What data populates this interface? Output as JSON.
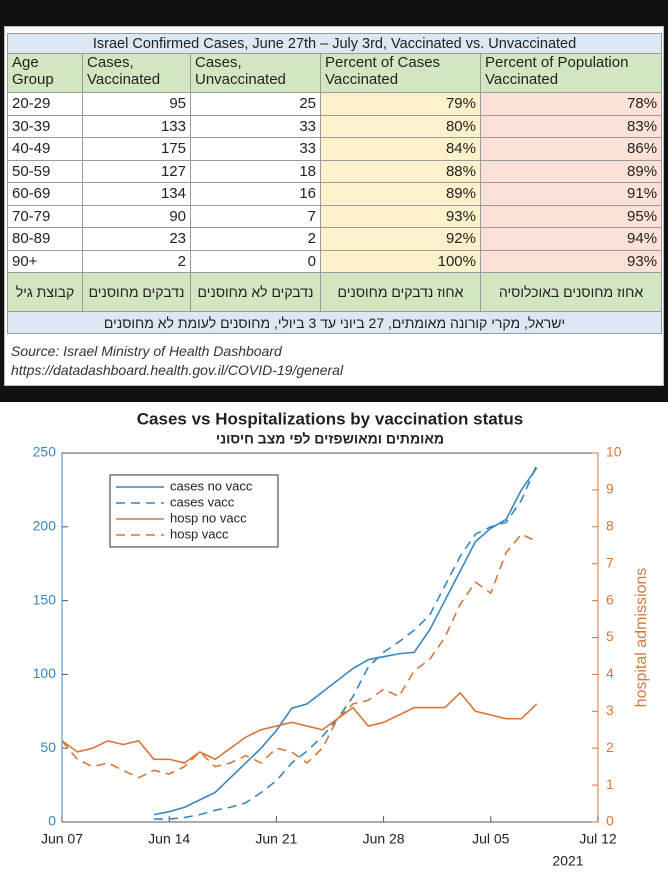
{
  "table": {
    "title": "Israel Confirmed Cases, June 27th – July 3rd, Vaccinated vs. Unvaccinated",
    "header": [
      "Age Group",
      "Cases, Vaccinated",
      "Cases, Unvaccinated",
      "Percent of Cases Vaccinated",
      "Percent of Population Vaccinated"
    ],
    "rows": [
      [
        "20-29",
        "95",
        "25",
        "79%",
        "78%"
      ],
      [
        "30-39",
        "133",
        "33",
        "80%",
        "83%"
      ],
      [
        "40-49",
        "175",
        "33",
        "84%",
        "86%"
      ],
      [
        "50-59",
        "127",
        "18",
        "88%",
        "89%"
      ],
      [
        "60-69",
        "134",
        "16",
        "89%",
        "91%"
      ],
      [
        "70-79",
        "90",
        "7",
        "93%",
        "95%"
      ],
      [
        "80-89",
        "23",
        "2",
        "92%",
        "94%"
      ],
      [
        "90+",
        "2",
        "0",
        "100%",
        "93%"
      ]
    ],
    "hebrew_header": [
      "קבוצת גיל",
      "נדבקים מחוסנים",
      "נדבקים לא מחוסנים",
      "אחוז נדבקים מחוסנים",
      "אחוז מחוסנים באוכלוסיה"
    ],
    "hebrew_title": "ישראל, מקרי קורונה מאומתים, 27 ביוני עד 3 ביולי, מחוסנים לעומת לא מחוסנים",
    "source": [
      "Source: Israel Ministry of Health Dashboard",
      "https://datadashboard.health.gov.il/COVID-19/general"
    ]
  },
  "chart_data": {
    "type": "line",
    "title": "Cases vs Hospitalizations by vaccination status",
    "subtitle": "מאומתים ומאושפזים לפי מצב חיסוני",
    "y2label": "hospital admissions",
    "x_offset_label": "2021",
    "x": [
      "2021-06-07",
      "2021-06-08",
      "2021-06-09",
      "2021-06-10",
      "2021-06-11",
      "2021-06-12",
      "2021-06-13",
      "2021-06-14",
      "2021-06-15",
      "2021-06-16",
      "2021-06-17",
      "2021-06-18",
      "2021-06-19",
      "2021-06-20",
      "2021-06-21",
      "2021-06-22",
      "2021-06-23",
      "2021-06-24",
      "2021-06-25",
      "2021-06-26",
      "2021-06-27",
      "2021-06-28",
      "2021-06-29",
      "2021-06-30",
      "2021-07-01",
      "2021-07-02",
      "2021-07-03",
      "2021-07-04",
      "2021-07-05",
      "2021-07-06",
      "2021-07-07",
      "2021-07-08"
    ],
    "xlim": [
      "2021-06-07",
      "2021-07-12"
    ],
    "xticks": [
      {
        "value": "2021-06-07",
        "label": "Jun 07"
      },
      {
        "value": "2021-06-14",
        "label": "Jun 14"
      },
      {
        "value": "2021-06-21",
        "label": "Jun 21"
      },
      {
        "value": "2021-06-28",
        "label": "Jun 28"
      },
      {
        "value": "2021-07-05",
        "label": "Jul 05"
      },
      {
        "value": "2021-07-12",
        "label": "Jul 12"
      }
    ],
    "ylim": [
      0,
      250
    ],
    "yticks": [
      0,
      50,
      100,
      150,
      200,
      250
    ],
    "y2lim": [
      0,
      10
    ],
    "y2ticks": [
      0,
      1,
      2,
      3,
      4,
      5,
      6,
      7,
      8,
      9,
      10
    ],
    "y_color": "#3a86c0",
    "y2_color": "#d9773a",
    "legend": "upper left",
    "series": [
      {
        "name": "cases no vacc",
        "color": "#3a86c0",
        "style": "solid",
        "axis": "y",
        "values": [
          null,
          null,
          null,
          null,
          null,
          null,
          5,
          7,
          10,
          15,
          20,
          30,
          40,
          50,
          62,
          77,
          80,
          88,
          96,
          104,
          110,
          112,
          114,
          115,
          130,
          150,
          170,
          190,
          199,
          205,
          225,
          240
        ]
      },
      {
        "name": "cases vacc",
        "color": "#3a86c0",
        "style": "dashed",
        "axis": "y",
        "values": [
          null,
          null,
          null,
          null,
          null,
          null,
          2,
          2,
          3,
          5,
          8,
          10,
          13,
          20,
          28,
          40,
          48,
          58,
          70,
          85,
          105,
          115,
          122,
          130,
          140,
          160,
          180,
          195,
          200,
          203,
          218,
          242
        ]
      },
      {
        "name": "hosp no vacc",
        "color": "#d9773a",
        "style": "solid",
        "axis": "y2",
        "values": [
          2.2,
          1.9,
          2.0,
          2.2,
          2.1,
          2.2,
          1.7,
          1.7,
          1.6,
          1.9,
          1.7,
          2.0,
          2.3,
          2.5,
          2.6,
          2.7,
          2.6,
          2.5,
          2.8,
          3.1,
          2.6,
          2.7,
          2.9,
          3.1,
          3.1,
          3.1,
          3.5,
          3.0,
          2.9,
          2.8,
          2.8,
          3.2
        ]
      },
      {
        "name": "hosp vacc",
        "color": "#d9773a",
        "style": "dashed",
        "axis": "y2",
        "values": [
          2.2,
          1.7,
          1.5,
          1.6,
          1.4,
          1.2,
          1.4,
          1.3,
          1.5,
          1.9,
          1.5,
          1.6,
          1.8,
          1.6,
          2.0,
          1.9,
          1.6,
          2.0,
          2.8,
          3.2,
          3.3,
          3.6,
          3.4,
          4.1,
          4.4,
          5.0,
          5.9,
          6.5,
          6.2,
          7.3,
          7.8,
          7.6
        ]
      }
    ]
  }
}
